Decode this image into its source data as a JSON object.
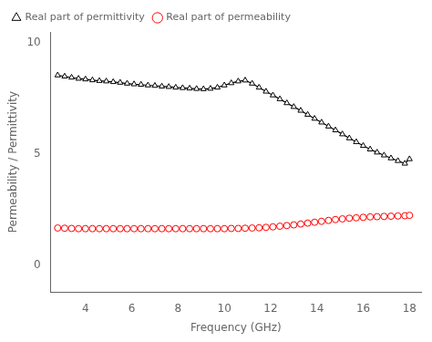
{
  "chart_data": {
    "type": "line",
    "x_label": "Frequency (GHz)",
    "y_label": "Permeability / Permittivity",
    "x": [
      2.8,
      3.1,
      3.4,
      3.7,
      4.0,
      4.3,
      4.6,
      4.9,
      5.2,
      5.5,
      5.8,
      6.1,
      6.4,
      6.7,
      7.0,
      7.3,
      7.6,
      7.9,
      8.2,
      8.5,
      8.8,
      9.1,
      9.4,
      9.7,
      10.0,
      10.3,
      10.6,
      10.9,
      11.2,
      11.5,
      11.8,
      12.1,
      12.4,
      12.7,
      13.0,
      13.3,
      13.6,
      13.9,
      14.2,
      14.5,
      14.8,
      15.1,
      15.4,
      15.7,
      16.0,
      16.3,
      16.6,
      16.9,
      17.2,
      17.5,
      17.8,
      18.0
    ],
    "series": [
      {
        "name": "Real part of permittivity",
        "color": "#000000",
        "marker": "triangle",
        "values": [
          8.55,
          8.5,
          8.45,
          8.4,
          8.37,
          8.33,
          8.3,
          8.28,
          8.25,
          8.22,
          8.18,
          8.15,
          8.13,
          8.1,
          8.08,
          8.05,
          8.03,
          8.0,
          7.98,
          7.96,
          7.94,
          7.93,
          7.95,
          8.0,
          8.1,
          8.2,
          8.28,
          8.32,
          8.18,
          8.0,
          7.82,
          7.65,
          7.48,
          7.3,
          7.13,
          6.96,
          6.78,
          6.6,
          6.43,
          6.25,
          6.08,
          5.9,
          5.72,
          5.55,
          5.38,
          5.22,
          5.08,
          4.95,
          4.82,
          4.7,
          4.58,
          4.78
        ]
      },
      {
        "name": "Real part of permeability",
        "color": "#ff0000",
        "marker": "circle",
        "values": [
          1.68,
          1.67,
          1.66,
          1.65,
          1.65,
          1.65,
          1.65,
          1.65,
          1.65,
          1.65,
          1.65,
          1.65,
          1.65,
          1.65,
          1.65,
          1.65,
          1.65,
          1.65,
          1.65,
          1.65,
          1.65,
          1.65,
          1.65,
          1.65,
          1.65,
          1.66,
          1.66,
          1.67,
          1.68,
          1.69,
          1.71,
          1.73,
          1.76,
          1.79,
          1.82,
          1.86,
          1.9,
          1.94,
          1.98,
          2.02,
          2.06,
          2.09,
          2.12,
          2.14,
          2.16,
          2.18,
          2.19,
          2.2,
          2.21,
          2.22,
          2.23,
          2.25
        ]
      }
    ],
    "xlim": [
      2.5,
      18.5
    ],
    "ylim": [
      -1.2,
      10.5
    ],
    "xticks": [
      4,
      6,
      8,
      10,
      12,
      14,
      16,
      18
    ],
    "yticks": [
      0,
      5,
      10
    ],
    "grid": false,
    "legend": "upper left"
  }
}
